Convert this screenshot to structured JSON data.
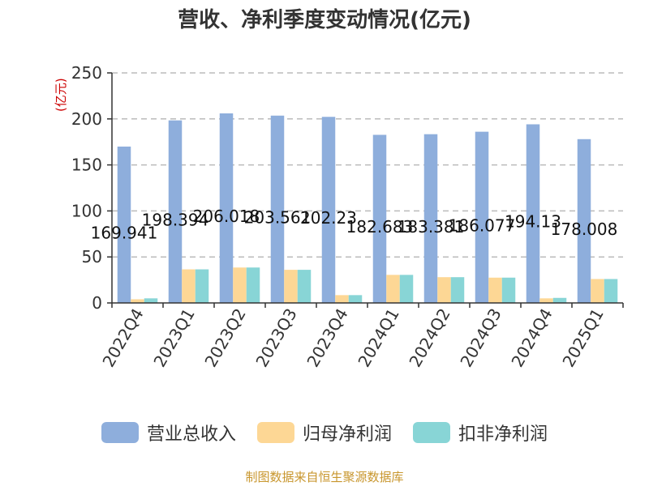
{
  "chart_data": {
    "type": "bar",
    "title": "营收、净利季度变动情况(亿元)",
    "ylabel": "(亿元)",
    "xlabel": "",
    "ylim": [
      0,
      250
    ],
    "yticks": [
      0,
      50,
      100,
      150,
      200,
      250
    ],
    "grid": true,
    "categories": [
      "2022Q4",
      "2023Q1",
      "2023Q2",
      "2023Q3",
      "2023Q4",
      "2024Q1",
      "2024Q2",
      "2024Q3",
      "2024Q4",
      "2025Q1"
    ],
    "series": [
      {
        "name": "营业总收入",
        "color": "#8eaedc",
        "values": [
          169.941,
          198.394,
          206.018,
          203.561,
          202.23,
          182.683,
          183.381,
          186.077,
          194.13,
          178.008
        ],
        "labels": [
          "169.941",
          "198.394",
          "206.018",
          "203.561",
          "202.23",
          "182.683",
          "183.381",
          "186.077",
          "194.13",
          "178.008"
        ]
      },
      {
        "name": "归母净利润",
        "color": "#fdd795",
        "values": [
          4,
          36.5,
          38.5,
          36,
          8.5,
          30.5,
          28,
          27.5,
          5,
          26
        ]
      },
      {
        "name": "扣非净利润",
        "color": "#88d5d6",
        "values": [
          5,
          36.5,
          38.5,
          36,
          8.5,
          30.5,
          28,
          27.5,
          5.5,
          26
        ]
      }
    ]
  },
  "source_text": "制图数据来自恒生聚源数据库"
}
